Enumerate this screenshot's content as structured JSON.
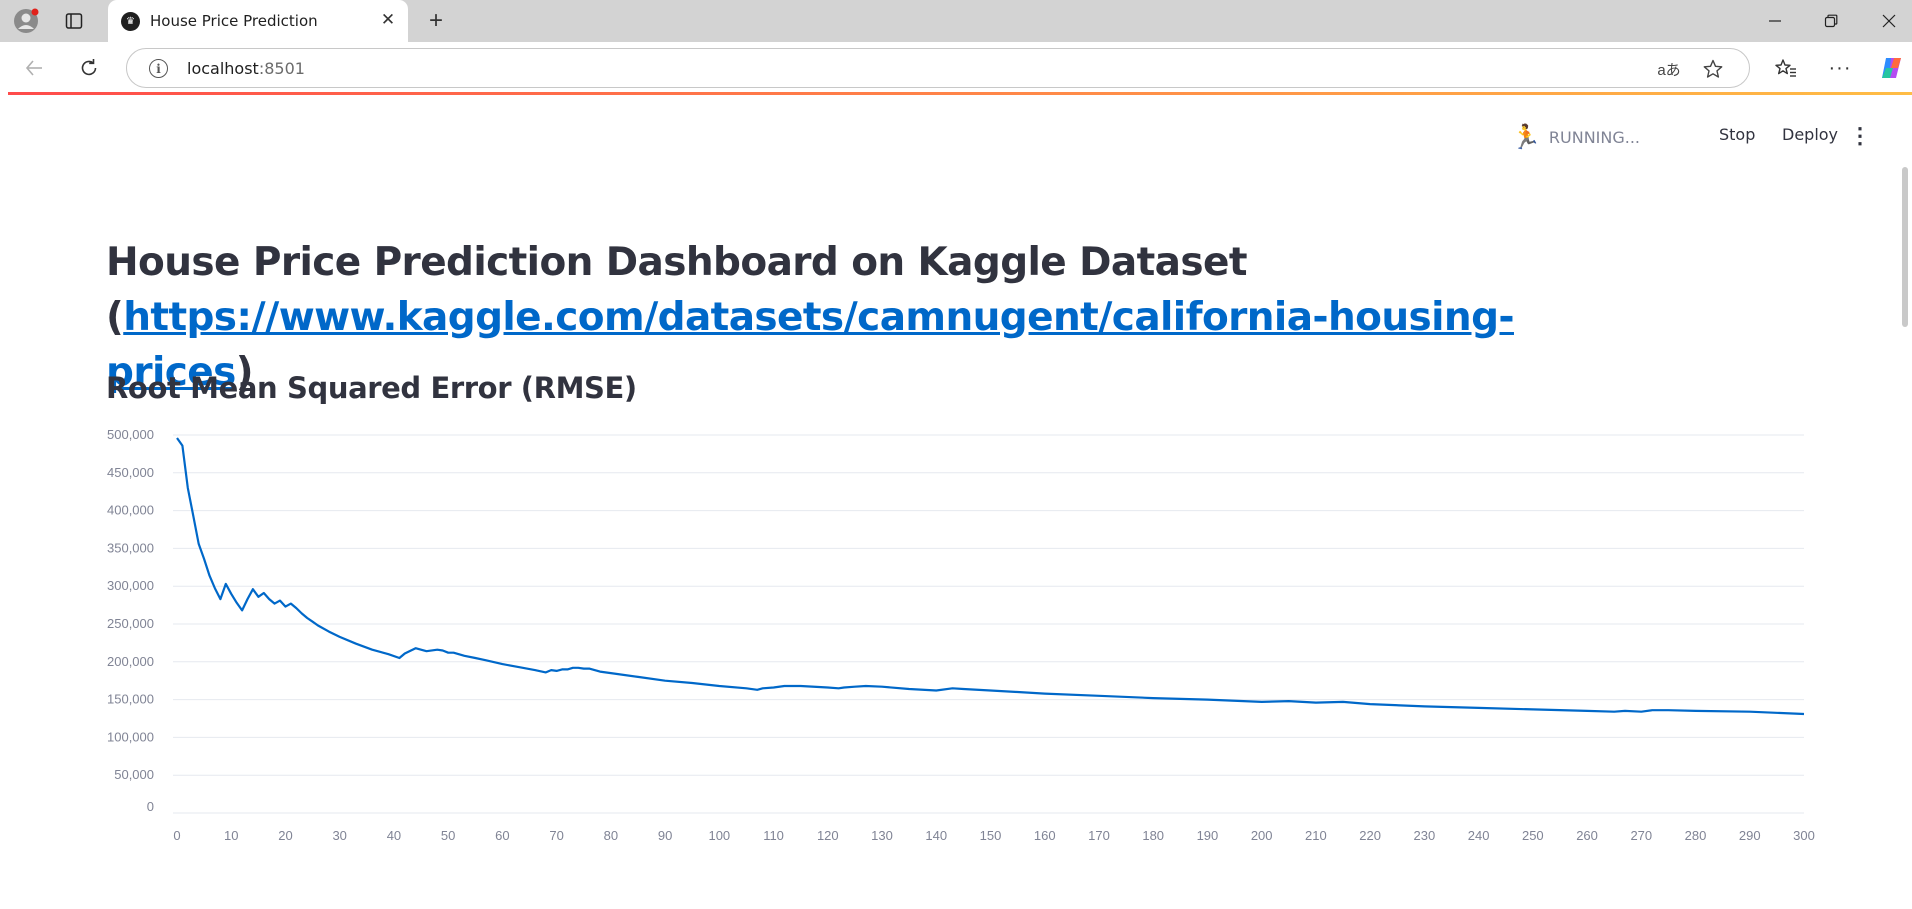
{
  "browser": {
    "tab_title": "House Price Prediction",
    "url_host": "localhost",
    "url_port": ":8501",
    "icons": {
      "profile": "profile-avatar-icon",
      "tab_actions": "tab-actions-icon",
      "favicon": "streamlit-crown-icon",
      "close_tab": "close-icon",
      "new_tab": "plus-icon",
      "minimize": "minimize-icon",
      "restore": "restore-icon",
      "close_window": "close-window-icon",
      "back": "back-arrow-icon",
      "refresh": "refresh-icon",
      "info": "info-icon",
      "translate": "translate-icon",
      "favorite": "star-icon",
      "favorites": "favorites-list-icon",
      "more": "more-icon",
      "copilot": "copilot-icon"
    }
  },
  "app": {
    "status_text": "RUNNING...",
    "stop_label": "Stop",
    "deploy_label": "Deploy",
    "title_prefix": "House Price Prediction Dashboard on Kaggle Dataset (",
    "title_link": "https://www.kaggle.com/datasets/camnugent/california-housing-prices",
    "title_suffix": ")",
    "subheader": "Root Mean Squared Error (RMSE)",
    "colors": {
      "line": "#0068c9",
      "link": "#0068c9",
      "text": "#31333f",
      "muted": "#808495",
      "progress_start": "#ff4b4b",
      "progress_end": "#ffbd45"
    }
  },
  "chart_data": {
    "type": "line",
    "title": "",
    "xlabel": "",
    "ylabel": "",
    "xlim": [
      0,
      300
    ],
    "ylim": [
      0,
      500000
    ],
    "grid": true,
    "x_ticks": [
      0,
      10,
      20,
      30,
      40,
      50,
      60,
      70,
      80,
      90,
      100,
      110,
      120,
      130,
      140,
      150,
      160,
      170,
      180,
      190,
      200,
      210,
      220,
      230,
      240,
      250,
      260,
      270,
      280,
      290,
      300
    ],
    "y_ticks": [
      0,
      50000,
      100000,
      150000,
      200000,
      250000,
      300000,
      350000,
      400000,
      450000,
      500000
    ],
    "series": [
      {
        "x": [
          0,
          1,
          2,
          3,
          4,
          5,
          6,
          7,
          8,
          9,
          10,
          11,
          12,
          13,
          14,
          15,
          16,
          17,
          18,
          19,
          20,
          21,
          22,
          23,
          24,
          25,
          26,
          28,
          30,
          33,
          36,
          39,
          41,
          42,
          44,
          46,
          48,
          49,
          50,
          51,
          53,
          55,
          57,
          60,
          63,
          66,
          68,
          69,
          70,
          71,
          72,
          73,
          74,
          75,
          76,
          78,
          80,
          85,
          90,
          95,
          100,
          105,
          107,
          108,
          110,
          112,
          115,
          120,
          122,
          123,
          125,
          127,
          130,
          135,
          140,
          143,
          145,
          150,
          155,
          160,
          170,
          180,
          190,
          200,
          205,
          210,
          215,
          220,
          230,
          240,
          250,
          260,
          265,
          267,
          270,
          272,
          275,
          280,
          290,
          300
        ],
        "y": [
          496000,
          486000,
          430000,
          393000,
          356000,
          336000,
          314000,
          297000,
          283000,
          303000,
          290000,
          278000,
          268000,
          283000,
          296000,
          286000,
          291000,
          283000,
          277000,
          281000,
          273000,
          277000,
          271000,
          264000,
          258000,
          253000,
          248000,
          240000,
          233000,
          224000,
          216000,
          210000,
          205000,
          211000,
          218000,
          214000,
          216000,
          215000,
          212000,
          212000,
          208000,
          205000,
          202000,
          197000,
          193000,
          189000,
          186000,
          189000,
          188000,
          190000,
          190000,
          192000,
          192000,
          191000,
          191000,
          187000,
          185000,
          180000,
          175000,
          172000,
          168000,
          165000,
          163000,
          165000,
          166000,
          168000,
          168000,
          166000,
          165000,
          166000,
          167000,
          168000,
          167000,
          164000,
          162000,
          165000,
          164000,
          162000,
          160000,
          158000,
          155000,
          152000,
          150000,
          147000,
          148000,
          146000,
          147000,
          144000,
          141000,
          139000,
          137000,
          135000,
          134000,
          135000,
          134000,
          136000,
          136000,
          135000,
          134000,
          131000
        ]
      }
    ]
  }
}
